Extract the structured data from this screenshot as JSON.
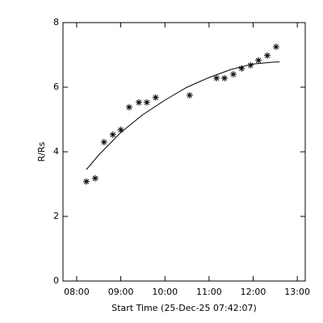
{
  "chart_data": {
    "type": "scatter",
    "xlabel": "Start Time (25-Dec-25 07:42:07)",
    "ylabel": "R/Rs",
    "xlim": [
      7.69,
      13.18
    ],
    "xticks": [
      {
        "value": 8,
        "label": "08:00"
      },
      {
        "value": 9,
        "label": "09:00"
      },
      {
        "value": 10,
        "label": "10:00"
      },
      {
        "value": 11,
        "label": "11:00"
      },
      {
        "value": 12,
        "label": "12:00"
      },
      {
        "value": 13,
        "label": "13:00"
      }
    ],
    "ylim": [
      0,
      8
    ],
    "yticks": [
      0,
      2,
      4,
      6,
      8
    ],
    "color": "#000000",
    "series": [
      {
        "type": "scatter",
        "color": "#000000",
        "x": [
          8.22,
          8.42,
          8.62,
          8.82,
          9.0,
          9.19,
          9.41,
          9.59,
          9.79,
          10.56,
          11.17,
          11.35,
          11.55,
          11.74,
          11.94,
          12.12,
          12.32,
          12.52
        ],
        "values": [
          3.08,
          3.18,
          4.3,
          4.53,
          4.68,
          5.38,
          5.53,
          5.53,
          5.68,
          5.75,
          6.28,
          6.28,
          6.4,
          6.58,
          6.68,
          6.83,
          6.98,
          7.25
        ]
      },
      {
        "type": "line",
        "color": "#000000",
        "x": [
          8.22,
          8.5,
          9.0,
          9.5,
          10.0,
          10.5,
          11.0,
          11.5,
          12.0,
          12.5,
          12.6
        ],
        "values": [
          3.45,
          3.9,
          4.6,
          5.15,
          5.6,
          6.0,
          6.3,
          6.55,
          6.72,
          6.78,
          6.78
        ]
      }
    ]
  }
}
